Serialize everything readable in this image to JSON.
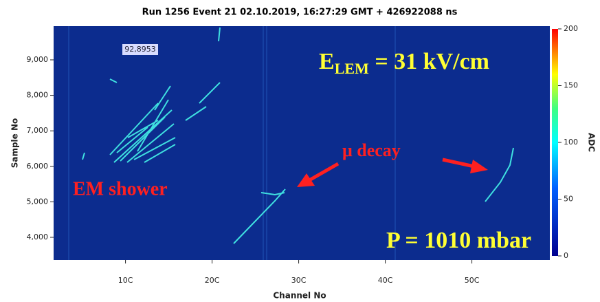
{
  "chart_data": {
    "type": "heatmap",
    "title": "Run 1256 Event 21 02.10.2019, 16:27:29 GMT + 426922088 ns",
    "x_label": "Channel No",
    "y_label": "Sample No",
    "colorbar_label": "ADC",
    "xlim": [
      17,
      590
    ],
    "ylim": [
      3360,
      9950
    ],
    "xticks": [
      {
        "value": 100,
        "label": "10C"
      },
      {
        "value": 200,
        "label": "20C"
      },
      {
        "value": 300,
        "label": "30C"
      },
      {
        "value": 400,
        "label": "40C"
      },
      {
        "value": 500,
        "label": "50C"
      }
    ],
    "yticks": [
      {
        "value": 4000,
        "label": "4,000"
      },
      {
        "value": 5000,
        "label": "5,000"
      },
      {
        "value": 6000,
        "label": "6,000"
      },
      {
        "value": 7000,
        "label": "7,000"
      },
      {
        "value": 8000,
        "label": "8,000"
      },
      {
        "value": 9000,
        "label": "9,000"
      }
    ],
    "clim": [
      0,
      200
    ],
    "cticks": [
      0,
      50,
      100,
      150,
      200
    ],
    "annotations": {
      "field_symbol": "E",
      "field_subscript": "LEM",
      "field_value": " = 31 kV/cm",
      "pressure": "P = 1010 mbar",
      "muon": "μ decay",
      "shower": "EM shower",
      "cursor": "92,8953"
    }
  }
}
